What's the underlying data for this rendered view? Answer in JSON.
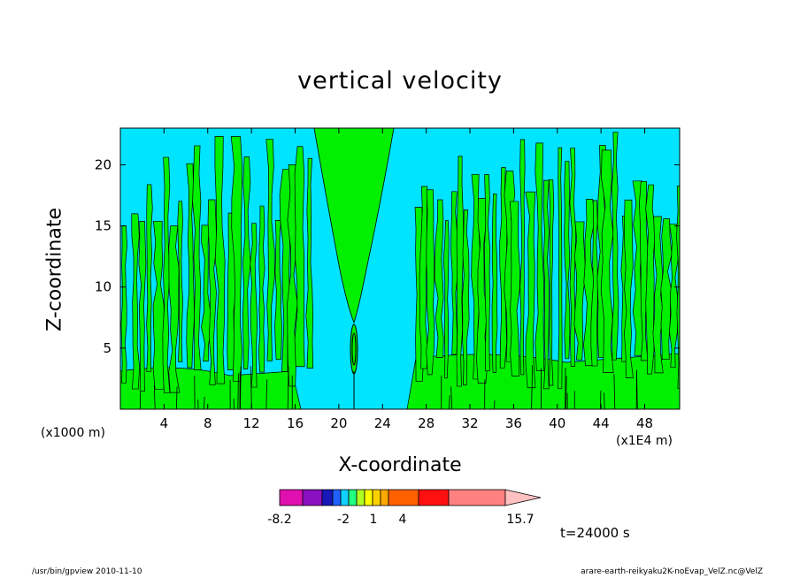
{
  "chart_data": {
    "type": "heatmap",
    "title": "vertical velocity",
    "xlabel": "X-coordinate",
    "ylabel": "Z-coordinate",
    "x_unit_left": "(x1000 m)",
    "x_unit_right": "(x1E4 m)",
    "xlim": [
      0,
      51.2
    ],
    "ylim": [
      0,
      23
    ],
    "xticks": [
      4,
      8,
      12,
      16,
      20,
      24,
      28,
      32,
      36,
      40,
      44,
      48
    ],
    "yticks": [
      5,
      10,
      15,
      20
    ],
    "colorbar": {
      "levels": [
        "-8.2",
        "-2",
        "1",
        "4",
        "15.7"
      ],
      "colors": [
        "#e010b0",
        "#8a10c0",
        "#1818b8",
        "#2060ff",
        "#10d0ff",
        "#20ff80",
        "#b0ff20",
        "#ffff00",
        "#ffd000",
        "#ffa800",
        "#ff6000",
        "#ff1010",
        "#ff8080",
        "#ffc0c0"
      ]
    },
    "field_colors": {
      "background": "#00e5ff",
      "positive": "#00f000",
      "contour": "#000000"
    },
    "time_label": "t=24000 s"
  },
  "footer": {
    "left": "/usr/bin/gpview   2010-11-10",
    "right": "arare-earth-reikyaku2K-noEvap_VelZ.nc@VelZ"
  }
}
